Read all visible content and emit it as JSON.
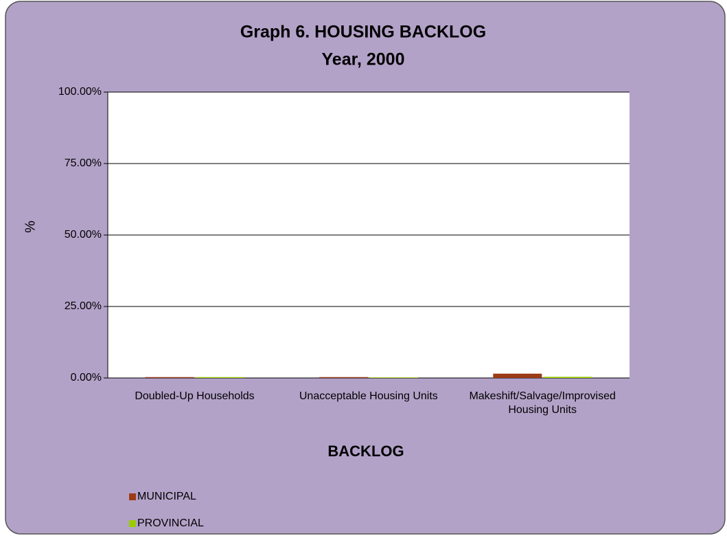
{
  "chart_data": {
    "type": "bar",
    "title": "Graph 6. HOUSING BACKLOG",
    "subtitle": "Year, 2000",
    "x_label": "BACKLOG",
    "y_label": "%",
    "categories": [
      "Doubled-Up Households",
      "Unacceptable Housing Units",
      "Makeshift/Salvage/Improvised Housing Units"
    ],
    "series": [
      {
        "name": "MUNICIPAL",
        "color": "#9c3b16",
        "values": [
          0.3,
          0.3,
          1.5
        ]
      },
      {
        "name": "PROVINCIAL",
        "color": "#99cc00",
        "values": [
          0.3,
          0.2,
          0.4
        ]
      }
    ],
    "ylim": [
      0,
      100
    ],
    "yticks": [
      {
        "value": 0,
        "label": "0.00%"
      },
      {
        "value": 25,
        "label": "25.00%"
      },
      {
        "value": 50,
        "label": "50.00%"
      },
      {
        "value": 75,
        "label": "75.00%"
      },
      {
        "value": 100,
        "label": "100.00%"
      }
    ],
    "grid": true,
    "legend": "bottom-left"
  }
}
